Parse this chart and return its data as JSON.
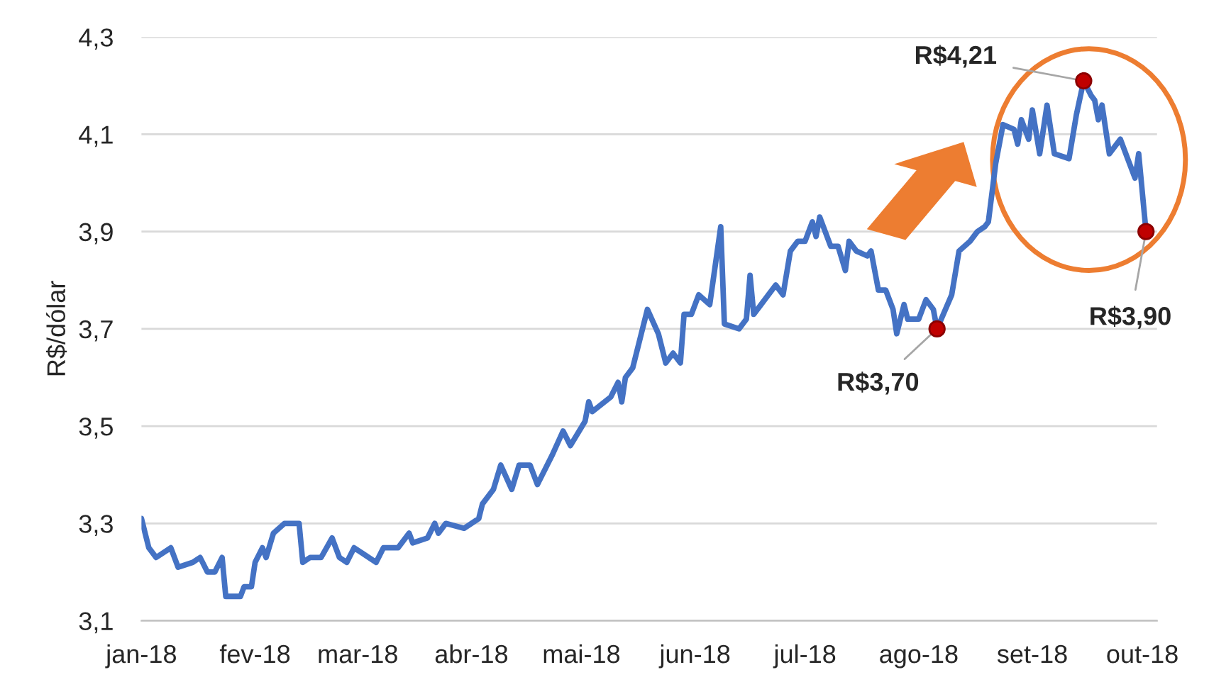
{
  "chart_data": {
    "type": "line",
    "ylabel": "R$/dólar",
    "x": [
      "2018-01-01",
      "2018-01-03",
      "2018-01-05",
      "2018-01-09",
      "2018-01-11",
      "2018-01-15",
      "2018-01-17",
      "2018-01-19",
      "2018-01-21",
      "2018-01-23",
      "2018-01-24",
      "2018-01-25",
      "2018-01-28",
      "2018-01-29",
      "2018-01-31",
      "2018-02-01",
      "2018-02-03",
      "2018-02-04",
      "2018-02-06",
      "2018-02-09",
      "2018-02-13",
      "2018-02-14",
      "2018-02-16",
      "2018-02-19",
      "2018-02-22",
      "2018-02-24",
      "2018-02-26",
      "2018-02-28",
      "2018-03-02",
      "2018-03-06",
      "2018-03-08",
      "2018-03-12",
      "2018-03-15",
      "2018-03-16",
      "2018-03-20",
      "2018-03-22",
      "2018-03-23",
      "2018-03-25",
      "2018-03-30",
      "2018-04-03",
      "2018-04-04",
      "2018-04-07",
      "2018-04-09",
      "2018-04-12",
      "2018-04-14",
      "2018-04-17",
      "2018-04-19",
      "2018-04-23",
      "2018-04-26",
      "2018-04-28",
      "2018-05-02",
      "2018-05-03",
      "2018-05-04",
      "2018-05-09",
      "2018-05-11",
      "2018-05-12",
      "2018-05-13",
      "2018-05-15",
      "2018-05-19",
      "2018-05-22",
      "2018-05-24",
      "2018-05-26",
      "2018-05-28",
      "2018-05-29",
      "2018-05-31",
      "2018-06-02",
      "2018-06-05",
      "2018-06-08",
      "2018-06-09",
      "2018-06-13",
      "2018-06-15",
      "2018-06-16",
      "2018-06-17",
      "2018-06-21",
      "2018-06-23",
      "2018-06-25",
      "2018-06-27",
      "2018-06-29",
      "2018-07-01",
      "2018-07-03",
      "2018-07-04",
      "2018-07-05",
      "2018-07-08",
      "2018-07-10",
      "2018-07-12",
      "2018-07-13",
      "2018-07-15",
      "2018-07-18",
      "2018-07-19",
      "2018-07-21",
      "2018-07-23",
      "2018-07-25",
      "2018-07-26",
      "2018-07-28",
      "2018-07-29",
      "2018-08-01",
      "2018-08-03",
      "2018-08-05",
      "2018-08-06",
      "2018-08-10",
      "2018-08-12",
      "2018-08-15",
      "2018-08-17",
      "2018-08-19",
      "2018-08-20",
      "2018-08-22",
      "2018-08-24",
      "2018-08-27",
      "2018-08-28",
      "2018-08-29",
      "2018-08-31",
      "2018-09-01",
      "2018-09-03",
      "2018-09-05",
      "2018-09-07",
      "2018-09-11",
      "2018-09-13",
      "2018-09-15",
      "2018-09-17",
      "2018-09-18",
      "2018-09-19",
      "2018-09-20",
      "2018-09-22",
      "2018-09-25",
      "2018-09-27",
      "2018-09-29",
      "2018-09-30",
      "2018-10-02"
    ],
    "series": [
      {
        "color": "#4472c4",
        "values": [
          3.31,
          3.25,
          3.23,
          3.25,
          3.21,
          3.22,
          3.23,
          3.2,
          3.2,
          3.23,
          3.15,
          3.15,
          3.15,
          3.17,
          3.17,
          3.22,
          3.25,
          3.23,
          3.28,
          3.3,
          3.3,
          3.22,
          3.23,
          3.23,
          3.27,
          3.23,
          3.22,
          3.25,
          3.24,
          3.22,
          3.25,
          3.25,
          3.28,
          3.26,
          3.27,
          3.3,
          3.28,
          3.3,
          3.29,
          3.31,
          3.34,
          3.37,
          3.42,
          3.37,
          3.42,
          3.42,
          3.38,
          3.44,
          3.49,
          3.46,
          3.51,
          3.55,
          3.53,
          3.56,
          3.59,
          3.55,
          3.6,
          3.62,
          3.74,
          3.69,
          3.63,
          3.65,
          3.63,
          3.73,
          3.73,
          3.77,
          3.75,
          3.91,
          3.71,
          3.7,
          3.72,
          3.81,
          3.73,
          3.77,
          3.79,
          3.77,
          3.86,
          3.88,
          3.88,
          3.92,
          3.89,
          3.93,
          3.87,
          3.87,
          3.82,
          3.88,
          3.86,
          3.85,
          3.86,
          3.78,
          3.78,
          3.74,
          3.69,
          3.75,
          3.72,
          3.72,
          3.76,
          3.74,
          3.7,
          3.77,
          3.86,
          3.88,
          3.9,
          3.91,
          3.92,
          4.04,
          4.12,
          4.11,
          4.08,
          4.13,
          4.09,
          4.15,
          4.06,
          4.16,
          4.06,
          4.05,
          4.14,
          4.21,
          4.18,
          4.17,
          4.13,
          4.16,
          4.06,
          4.09,
          4.05,
          4.01,
          4.06,
          3.9
        ]
      }
    ],
    "xlim": [
      "2018-01-01",
      "2018-10-05"
    ],
    "xticks": [
      {
        "value": "2018-01-01",
        "label": "jan-18"
      },
      {
        "value": "2018-02-01",
        "label": "fev-18"
      },
      {
        "value": "2018-03-01",
        "label": "mar-18"
      },
      {
        "value": "2018-04-01",
        "label": "abr-18"
      },
      {
        "value": "2018-05-01",
        "label": "mai-18"
      },
      {
        "value": "2018-06-01",
        "label": "jun-18"
      },
      {
        "value": "2018-07-01",
        "label": "jul-18"
      },
      {
        "value": "2018-08-01",
        "label": "ago-18"
      },
      {
        "value": "2018-09-01",
        "label": "set-18"
      },
      {
        "value": "2018-10-01",
        "label": "out-18"
      }
    ],
    "ylim": [
      3.1,
      4.3
    ],
    "yticks": [
      {
        "value": 3.1,
        "label": "3,1"
      },
      {
        "value": 3.3,
        "label": "3,3"
      },
      {
        "value": 3.5,
        "label": "3,5"
      },
      {
        "value": 3.7,
        "label": "3,7"
      },
      {
        "value": 3.9,
        "label": "3,9"
      },
      {
        "value": 4.1,
        "label": "4,1"
      },
      {
        "value": 4.3,
        "label": "4,3"
      }
    ],
    "grid": "y",
    "marker": "none",
    "line_style": "solid",
    "annotations": [
      {
        "text": "R$3,70",
        "x": "2018-08-06",
        "y": 3.7
      },
      {
        "text": "R$4,21",
        "x": "2018-09-15",
        "y": 4.21
      },
      {
        "text": "R$3,90",
        "x": "2018-10-02",
        "y": 3.9
      }
    ]
  }
}
